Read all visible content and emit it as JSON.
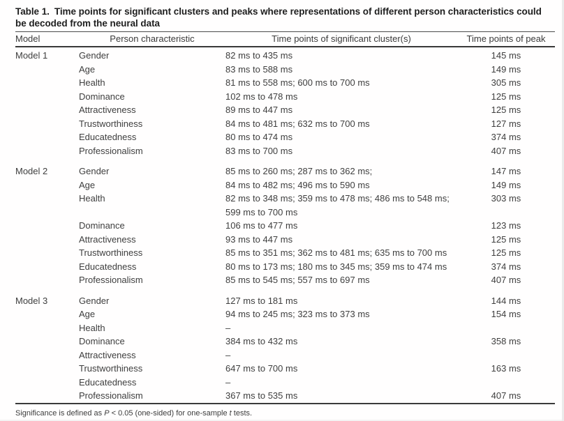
{
  "title": {
    "label": "Table 1.",
    "text": "Time points for significant clusters and peaks where representations of different person characteristics could be decoded from the neural data"
  },
  "columns": [
    "Model",
    "Person characteristic",
    "Time points of significant cluster(s)",
    "Time points of peak"
  ],
  "groups": [
    {
      "model": "Model 1",
      "rows": [
        {
          "characteristic": "Gender",
          "clusters": "82 ms to 435 ms",
          "peak": "145 ms"
        },
        {
          "characteristic": "Age",
          "clusters": "83 ms to 588 ms",
          "peak": "149 ms"
        },
        {
          "characteristic": "Health",
          "clusters": "81 ms to 558 ms; 600 ms to 700 ms",
          "peak": "305 ms"
        },
        {
          "characteristic": "Dominance",
          "clusters": "102 ms to 478 ms",
          "peak": "125 ms"
        },
        {
          "characteristic": "Attractiveness",
          "clusters": "89 ms to 447 ms",
          "peak": "125 ms"
        },
        {
          "characteristic": "Trustworthiness",
          "clusters": "84 ms to 481 ms; 632 ms to 700 ms",
          "peak": "127 ms"
        },
        {
          "characteristic": "Educatedness",
          "clusters": "80 ms to 474 ms",
          "peak": "374 ms"
        },
        {
          "characteristic": "Professionalism",
          "clusters": "83 ms to 700 ms",
          "peak": "407 ms"
        }
      ]
    },
    {
      "model": "Model 2",
      "rows": [
        {
          "characteristic": "Gender",
          "clusters": "85 ms to 260 ms; 287 ms to 362 ms;",
          "peak": "147 ms"
        },
        {
          "characteristic": "Age",
          "clusters": "84 ms to 482 ms; 496 ms to 590 ms",
          "peak": "149 ms"
        },
        {
          "characteristic": "Health",
          "clusters": "82 ms to 348 ms; 359 ms to 478 ms; 486 ms to 548 ms;\n599 ms to 700 ms",
          "peak": "303 ms"
        },
        {
          "characteristic": "Dominance",
          "clusters": "106 ms to 477 ms",
          "peak": "123 ms"
        },
        {
          "characteristic": "Attractiveness",
          "clusters": "93 ms to 447 ms",
          "peak": "125 ms"
        },
        {
          "characteristic": "Trustworthiness",
          "clusters": "85 ms to 351 ms; 362 ms to 481 ms; 635 ms to 700 ms",
          "peak": "125 ms"
        },
        {
          "characteristic": "Educatedness",
          "clusters": "80 ms to 173 ms; 180 ms to 345 ms; 359 ms to 474 ms",
          "peak": "374 ms"
        },
        {
          "characteristic": "Professionalism",
          "clusters": "85 ms to 545 ms; 557 ms to 697 ms",
          "peak": "407 ms"
        }
      ]
    },
    {
      "model": "Model 3",
      "rows": [
        {
          "characteristic": "Gender",
          "clusters": "127 ms to 181 ms",
          "peak": "144 ms"
        },
        {
          "characteristic": "Age",
          "clusters": "94 ms to 245 ms; 323 ms to 373 ms",
          "peak": "154 ms"
        },
        {
          "characteristic": "Health",
          "clusters": "–",
          "peak": ""
        },
        {
          "characteristic": "Dominance",
          "clusters": "384 ms to 432 ms",
          "peak": "358 ms"
        },
        {
          "characteristic": "Attractiveness",
          "clusters": "–",
          "peak": ""
        },
        {
          "characteristic": "Trustworthiness",
          "clusters": "647 ms to 700 ms",
          "peak": "163 ms"
        },
        {
          "characteristic": "Educatedness",
          "clusters": "–",
          "peak": ""
        },
        {
          "characteristic": "Professionalism",
          "clusters": "367 ms to 535 ms",
          "peak": "407 ms"
        }
      ]
    }
  ],
  "footnote": {
    "pre": "Significance is defined as ",
    "p_symbol": "P",
    "mid": " < 0.05 (one-sided) for one-sample ",
    "t_symbol": "t",
    "post": " tests."
  }
}
